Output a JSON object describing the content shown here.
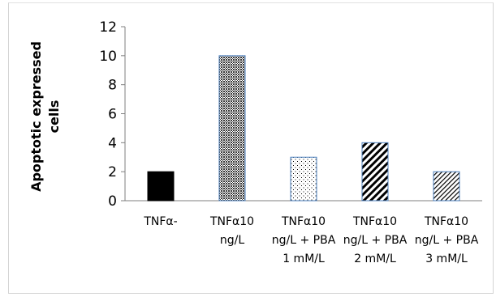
{
  "chart_data": {
    "type": "bar",
    "ylabel_lines": [
      "Apoptotic expressed",
      "cells"
    ],
    "xlabel": "",
    "ylim": [
      0,
      12
    ],
    "yticks": [
      0,
      2,
      4,
      6,
      8,
      10,
      12
    ],
    "grid": false,
    "legend": "none",
    "categories": [
      {
        "lines": [
          "TNFα-"
        ]
      },
      {
        "lines": [
          "TNFα10",
          "ng/L"
        ]
      },
      {
        "lines": [
          "TNFα10",
          "ng/L + PBA",
          "1 mM/L"
        ]
      },
      {
        "lines": [
          "TNFα10",
          "ng/L + PBA",
          "2 mM/L"
        ]
      },
      {
        "lines": [
          "TNFα10",
          "ng/L + PBA",
          "3 mM/L"
        ]
      }
    ],
    "values": [
      2,
      10,
      3,
      4,
      2
    ],
    "bar_fills": [
      "solid-black",
      "dense-crosshatch",
      "dots",
      "wide-diagonal",
      "thin-diagonal"
    ],
    "colors": {
      "bar_border": "#4a7ebb",
      "bar_solid": "#000000",
      "axis": "#7f7f7f",
      "text": "#000000"
    }
  }
}
